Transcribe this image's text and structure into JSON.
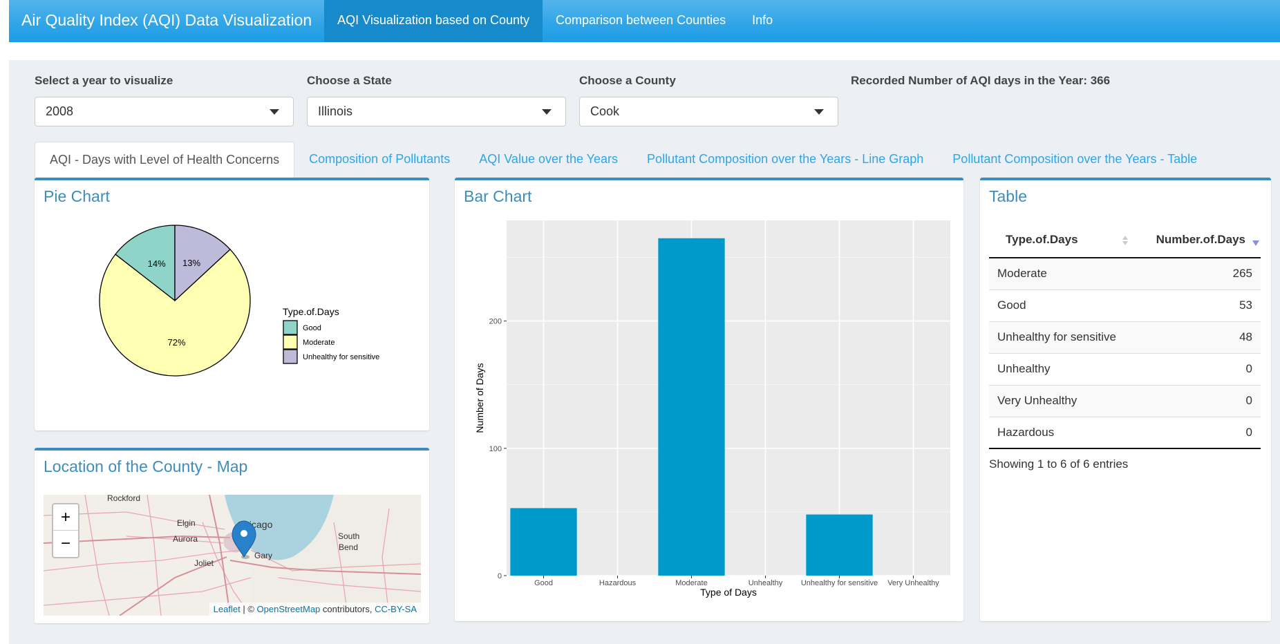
{
  "navbar": {
    "brand": "Air Quality Index (AQI) Data Visualization",
    "items": [
      {
        "label": "AQI Visualization based on County"
      },
      {
        "label": "Comparison between Counties"
      },
      {
        "label": "Info"
      }
    ]
  },
  "controls": {
    "year": {
      "label": "Select a year to visualize",
      "value": "2008"
    },
    "state": {
      "label": "Choose a State",
      "value": "Illinois"
    },
    "county": {
      "label": "Choose a County",
      "value": "Cook"
    },
    "recorded": "Recorded Number of AQI days in the Year: 366"
  },
  "tabs": [
    {
      "label": "AQI - Days with Level of Health Concerns"
    },
    {
      "label": "Composition of Pollutants"
    },
    {
      "label": "AQI Value over the Years"
    },
    {
      "label": "Pollutant Composition over the Years - Line Graph"
    },
    {
      "label": "Pollutant Composition over the Years - Table"
    }
  ],
  "pie": {
    "title": "Pie Chart",
    "legend_title": "Type.of.Days",
    "slices": [
      {
        "label": "Good",
        "percent_label": "14%",
        "value": 53,
        "color": "#8fd4c8"
      },
      {
        "label": "Moderate",
        "percent_label": "72%",
        "value": 265,
        "color": "#ffffb3"
      },
      {
        "label": "Unhealthy for sensitive",
        "percent_label": "13%",
        "value": 48,
        "color": "#bebada"
      }
    ]
  },
  "map": {
    "title": "Location of the County - Map",
    "zoom_in": "+",
    "zoom_out": "−",
    "places": [
      "Rockford",
      "Elgin",
      "Aurora",
      "Chicago",
      "Joliet",
      "Gary",
      "South",
      "Bend"
    ],
    "attribution": {
      "leaflet": "Leaflet",
      "sep": " | © ",
      "osm": "OpenStreetMap",
      "contributors": " contributors, ",
      "license": "CC-BY-SA"
    }
  },
  "bar": {
    "title": "Bar Chart",
    "chart_data": {
      "type": "bar",
      "categories": [
        "Good",
        "Hazardous",
        "Moderate",
        "Unhealthy",
        "Unhealthy for sensitive",
        "Very Unhealthy"
      ],
      "values": [
        53,
        0,
        265,
        0,
        48,
        0
      ],
      "xlabel": "Type of Days",
      "ylabel": "Number of Days",
      "ylim": [
        0,
        279
      ],
      "yticks": [
        0,
        100,
        200
      ],
      "grid": true,
      "bar_color": "#0099cc"
    }
  },
  "table": {
    "title": "Table",
    "columns": [
      "Type.of.Days",
      "Number.of.Days"
    ],
    "rows": [
      [
        "Moderate",
        "265"
      ],
      [
        "Good",
        "53"
      ],
      [
        "Unhealthy for sensitive",
        "48"
      ],
      [
        "Unhealthy",
        "0"
      ],
      [
        "Very Unhealthy",
        "0"
      ],
      [
        "Hazardous",
        "0"
      ]
    ],
    "info": "Showing 1 to 6 of 6 entries"
  }
}
